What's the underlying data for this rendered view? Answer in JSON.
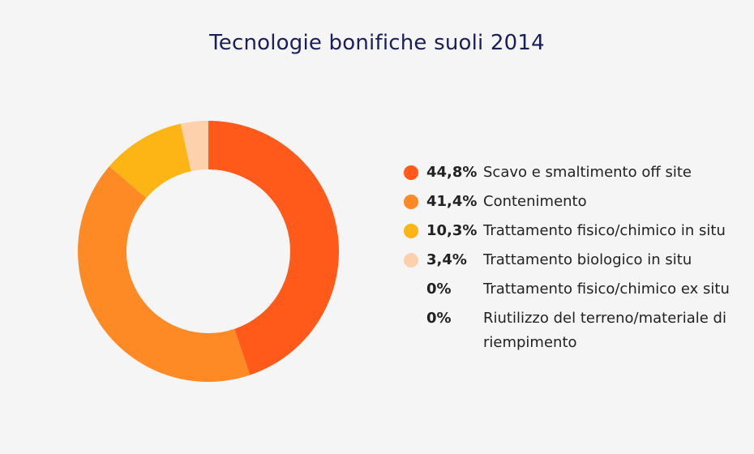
{
  "title": "Tecnologie bonifiche suoli 2014",
  "chart_data": {
    "type": "pie",
    "title": "Tecnologie bonifiche suoli 2014",
    "categories": [
      "Scavo e smaltimento off site",
      "Contenimento",
      "Trattamento fisico/chimico in situ",
      "Trattamento biologico in situ",
      "Trattamento fisico/chimico ex situ",
      "Riutilizzo del terreno/materiale di riempimento"
    ],
    "values": [
      44.8,
      41.4,
      10.3,
      3.4,
      0,
      0
    ],
    "value_labels": [
      "44,8%",
      "41,4%",
      "10,3%",
      "3,4%",
      "0%",
      "0%"
    ],
    "colors": [
      "#ff5a1a",
      "#fd8a24",
      "#fdb515",
      "#fdd1ab",
      null,
      null
    ],
    "donut": true,
    "legend": "right"
  }
}
